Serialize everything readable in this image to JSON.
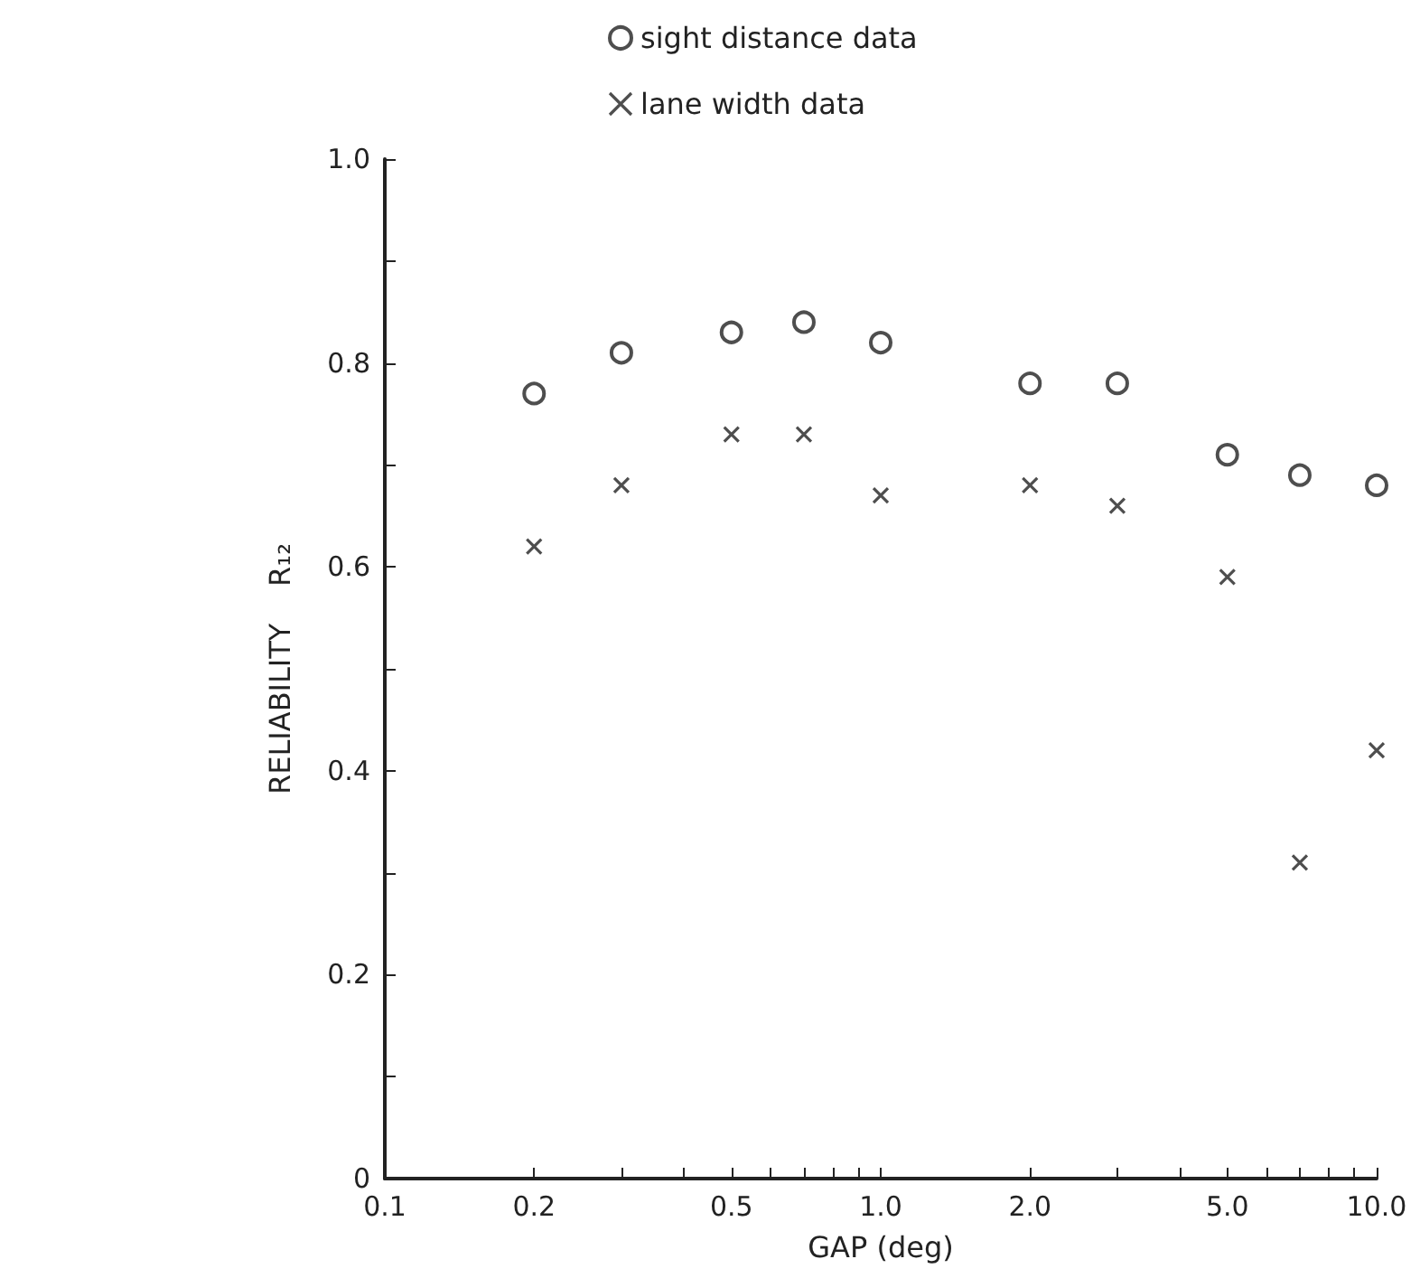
{
  "chart_data": {
    "type": "scatter",
    "xlabel": "GAP (deg)",
    "ylabel": "RELIABILITY    R₁₂",
    "log": "x",
    "grid": false,
    "legend": "top",
    "xlim": [
      0.1,
      10
    ],
    "xticks": [
      {
        "value": 0.1,
        "label": "0.1"
      },
      0.2,
      {
        "value": 0.3,
        "label": null
      },
      {
        "value": 0.4,
        "label": null
      },
      0.5,
      {
        "value": 0.6,
        "label": null
      },
      {
        "value": 0.7,
        "label": null
      },
      {
        "value": 0.8,
        "label": null
      },
      {
        "value": 0.9,
        "label": null
      },
      {
        "value": 1,
        "label": "1.0"
      },
      {
        "value": 2,
        "label": "2.0"
      },
      {
        "value": 3,
        "label": null
      },
      {
        "value": 4,
        "label": null
      },
      {
        "value": 5,
        "label": "5.0"
      },
      {
        "value": 6,
        "label": null
      },
      {
        "value": 7,
        "label": null
      },
      {
        "value": 8,
        "label": null
      },
      {
        "value": 9,
        "label": null
      },
      {
        "value": 10,
        "label": "10.0"
      }
    ],
    "ylim": [
      0,
      1
    ],
    "yticks": [
      0,
      {
        "value": 0.1,
        "label": null
      },
      0.2,
      {
        "value": 0.3,
        "label": null
      },
      0.4,
      {
        "value": 0.5,
        "label": null
      },
      0.6,
      {
        "value": 0.7,
        "label": null
      },
      0.8,
      {
        "value": 0.9,
        "label": null
      },
      {
        "value": 1,
        "label": "1.0"
      }
    ],
    "x": [
      0.2,
      0.3,
      0.5,
      0.7,
      1,
      2,
      3,
      5,
      7,
      10
    ],
    "series": [
      {
        "name": "sight distance data",
        "color": "#222222",
        "marker": "circle",
        "values": [
          0.77,
          0.81,
          0.83,
          0.84,
          0.82,
          0.78,
          0.78,
          0.71,
          0.69,
          0.68
        ]
      },
      {
        "name": "lane width data",
        "color": "#222222",
        "marker": "cross",
        "values": [
          0.62,
          0.68,
          0.73,
          0.73,
          0.67,
          0.68,
          0.66,
          0.59,
          0.31,
          0.42
        ]
      }
    ]
  }
}
